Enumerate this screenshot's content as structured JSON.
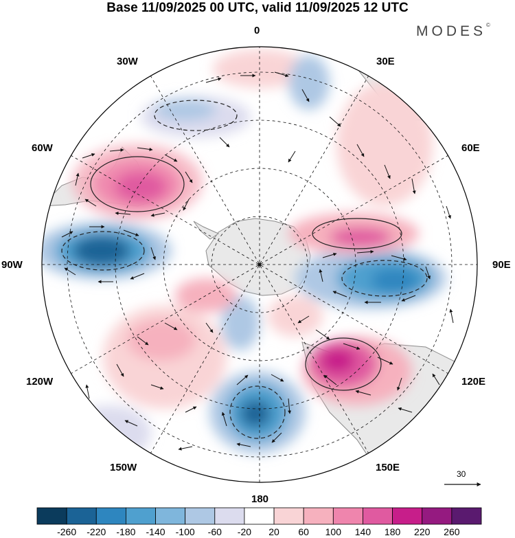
{
  "title": "Base 11/09/2025 00 UTC, valid 11/09/2025 12 UTC",
  "brand": "MODES",
  "brand_mark": "©",
  "longitude_labels": {
    "lon_0": "0",
    "lon_30e": "30E",
    "lon_60e": "60E",
    "lon_90e": "90E",
    "lon_120e": "120E",
    "lon_150e": "150E",
    "lon_180": "180",
    "lon_150w": "150W",
    "lon_120w": "120W",
    "lon_90w": "90W",
    "lon_60w": "60W",
    "lon_30w": "30W"
  },
  "reference_vector": {
    "label": "30"
  },
  "colorbar": {
    "labels": [
      "-260",
      "-220",
      "-180",
      "-140",
      "-100",
      "-60",
      "-20",
      "20",
      "60",
      "100",
      "140",
      "180",
      "220",
      "260"
    ],
    "colors": [
      "#0b3b5c",
      "#1b6396",
      "#2e86bf",
      "#4fa0cf",
      "#7fb6dc",
      "#aec8e4",
      "#dcdcee",
      "#ffffff",
      "#f9d4d6",
      "#f6b1be",
      "#ef85ad",
      "#e05aa0",
      "#c71e8a",
      "#951a80",
      "#5a1a6f"
    ]
  },
  "palette": {
    "land": "#e9e9e9",
    "coast": "#888888",
    "grid": "#000000",
    "arrow": "#111111"
  }
}
